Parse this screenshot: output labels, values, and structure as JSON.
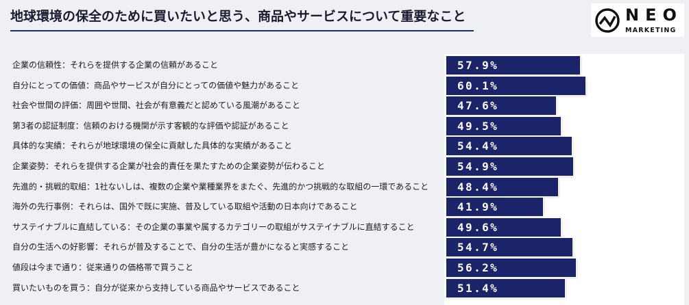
{
  "logo": {
    "name": "NEO",
    "sub": "MARKETING",
    "icon": "neo-circle-zigzag-icon"
  },
  "colors": {
    "bar": "#1b2468",
    "background": "#eef0f3",
    "panel": "#ffffff",
    "accent_line": "#1c2c6b"
  },
  "chart_data": {
    "type": "bar",
    "orientation": "horizontal",
    "title": "地球環境の保全のために買いたいと思う、商品やサービスについて重要なこと",
    "categories": [
      "企業の信頼性：それらを提供する企業の信頼があること",
      "自分にとっての価値：商品やサービスが自分にとっての価値や魅力があること",
      "社会や世間の評価：周囲や世間、社会が有意義だと認めている風潮があること",
      "第3者の認証制度：信頼のおける機関が示す客観的な評価や認証があること",
      "具体的な実績：それらが地球環境の保全に貢献した具体的な実績があること",
      "企業姿勢：それらを提供する企業が社会的責任を果たすための企業姿勢が伝わること",
      "先進的・挑戦的取組：1社ないしは、複数の企業や業種業界をまたぐ、先進的かつ挑戦的な取組の一環であること",
      "海外の先行事例：それらは、国外で既に実施、普及している取組や活動の日本向けであること",
      "サステイナブルに直結している：その企業の事業や属するカテゴリーの取組がサステイナブルに直結すること",
      "自分の生活への好影響：それらが普及することで、自分の生活が豊かになると実感すること",
      "値段は今まで通り：従来通りの価格帯で買うこと",
      "買いたいものを買う：自分が従来から支持している商品やサービスであること"
    ],
    "values": [
      57.9,
      60.1,
      47.6,
      49.5,
      54.4,
      54.9,
      48.4,
      41.9,
      49.6,
      54.7,
      56.2,
      51.4
    ],
    "data_labels": [
      "57.9%",
      "60.1%",
      "47.6%",
      "49.5%",
      "54.4%",
      "54.9%",
      "48.4%",
      "41.9%",
      "49.6%",
      "54.7%",
      "56.2%",
      "51.4%"
    ],
    "xlim": [
      0,
      100
    ],
    "grid": false,
    "legend": "none"
  }
}
